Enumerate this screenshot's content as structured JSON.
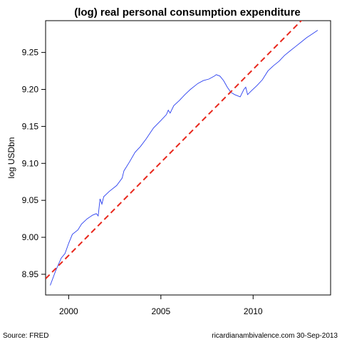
{
  "chart_data": {
    "type": "line",
    "title": "(log) real personal consumption expenditure",
    "xlabel": "",
    "ylabel": "log USDbn",
    "xlim": [
      1998.75,
      2014.2
    ],
    "ylim": [
      8.922,
      9.293
    ],
    "xticks": [
      2000,
      2005,
      2010
    ],
    "yticks": [
      8.95,
      9.0,
      9.05,
      9.1,
      9.15,
      9.2,
      9.25
    ],
    "ytick_labels": [
      "8.95",
      "9.00",
      "9.05",
      "9.10",
      "9.15",
      "9.20",
      "9.25"
    ],
    "grid": false,
    "legend": "none",
    "series": [
      {
        "kind": "line",
        "color": "#2a3ff0",
        "x": [
          1999.0,
          1999.3,
          1999.6,
          1999.8,
          2000.0,
          2000.2,
          2000.5,
          2000.7,
          2001.0,
          2001.3,
          2001.5,
          2001.6,
          2001.7,
          2001.8,
          2001.9,
          2002.2,
          2002.6,
          2002.9,
          2003.0,
          2003.3,
          2003.6,
          2003.9,
          2004.2,
          2004.6,
          2005.0,
          2005.3,
          2005.4,
          2005.5,
          2005.7,
          2006.0,
          2006.3,
          2006.6,
          2006.9,
          2007.0,
          2007.3,
          2007.6,
          2007.9,
          2008.0,
          2008.2,
          2008.4,
          2008.6,
          2008.8,
          2009.0,
          2009.3,
          2009.5,
          2009.6,
          2009.7,
          2009.9,
          2010.2,
          2010.5,
          2010.8,
          2011.1,
          2011.4,
          2011.7,
          2012.0,
          2012.3,
          2012.6,
          2012.9,
          2013.2,
          2013.5
        ],
        "y": [
          8.935,
          8.955,
          8.972,
          8.978,
          8.992,
          9.004,
          9.01,
          9.018,
          9.025,
          9.03,
          9.032,
          9.029,
          9.052,
          9.045,
          9.055,
          9.062,
          9.07,
          9.08,
          9.09,
          9.102,
          9.115,
          9.123,
          9.133,
          9.148,
          9.158,
          9.166,
          9.172,
          9.168,
          9.178,
          9.185,
          9.193,
          9.2,
          9.206,
          9.208,
          9.212,
          9.214,
          9.218,
          9.22,
          9.218,
          9.212,
          9.203,
          9.196,
          9.193,
          9.19,
          9.2,
          9.203,
          9.193,
          9.198,
          9.205,
          9.213,
          9.225,
          9.232,
          9.238,
          9.246,
          9.252,
          9.258,
          9.264,
          9.27,
          9.275,
          9.28
        ]
      },
      {
        "kind": "dashed-line",
        "color": "#e8271c",
        "x": [
          1998.75,
          2014.2
        ],
        "y": [
          8.944,
          9.333
        ]
      }
    ]
  },
  "footer": {
    "source": "Source: FRED",
    "credit": "ricardianambivalence.com   30-Sep-2013"
  }
}
